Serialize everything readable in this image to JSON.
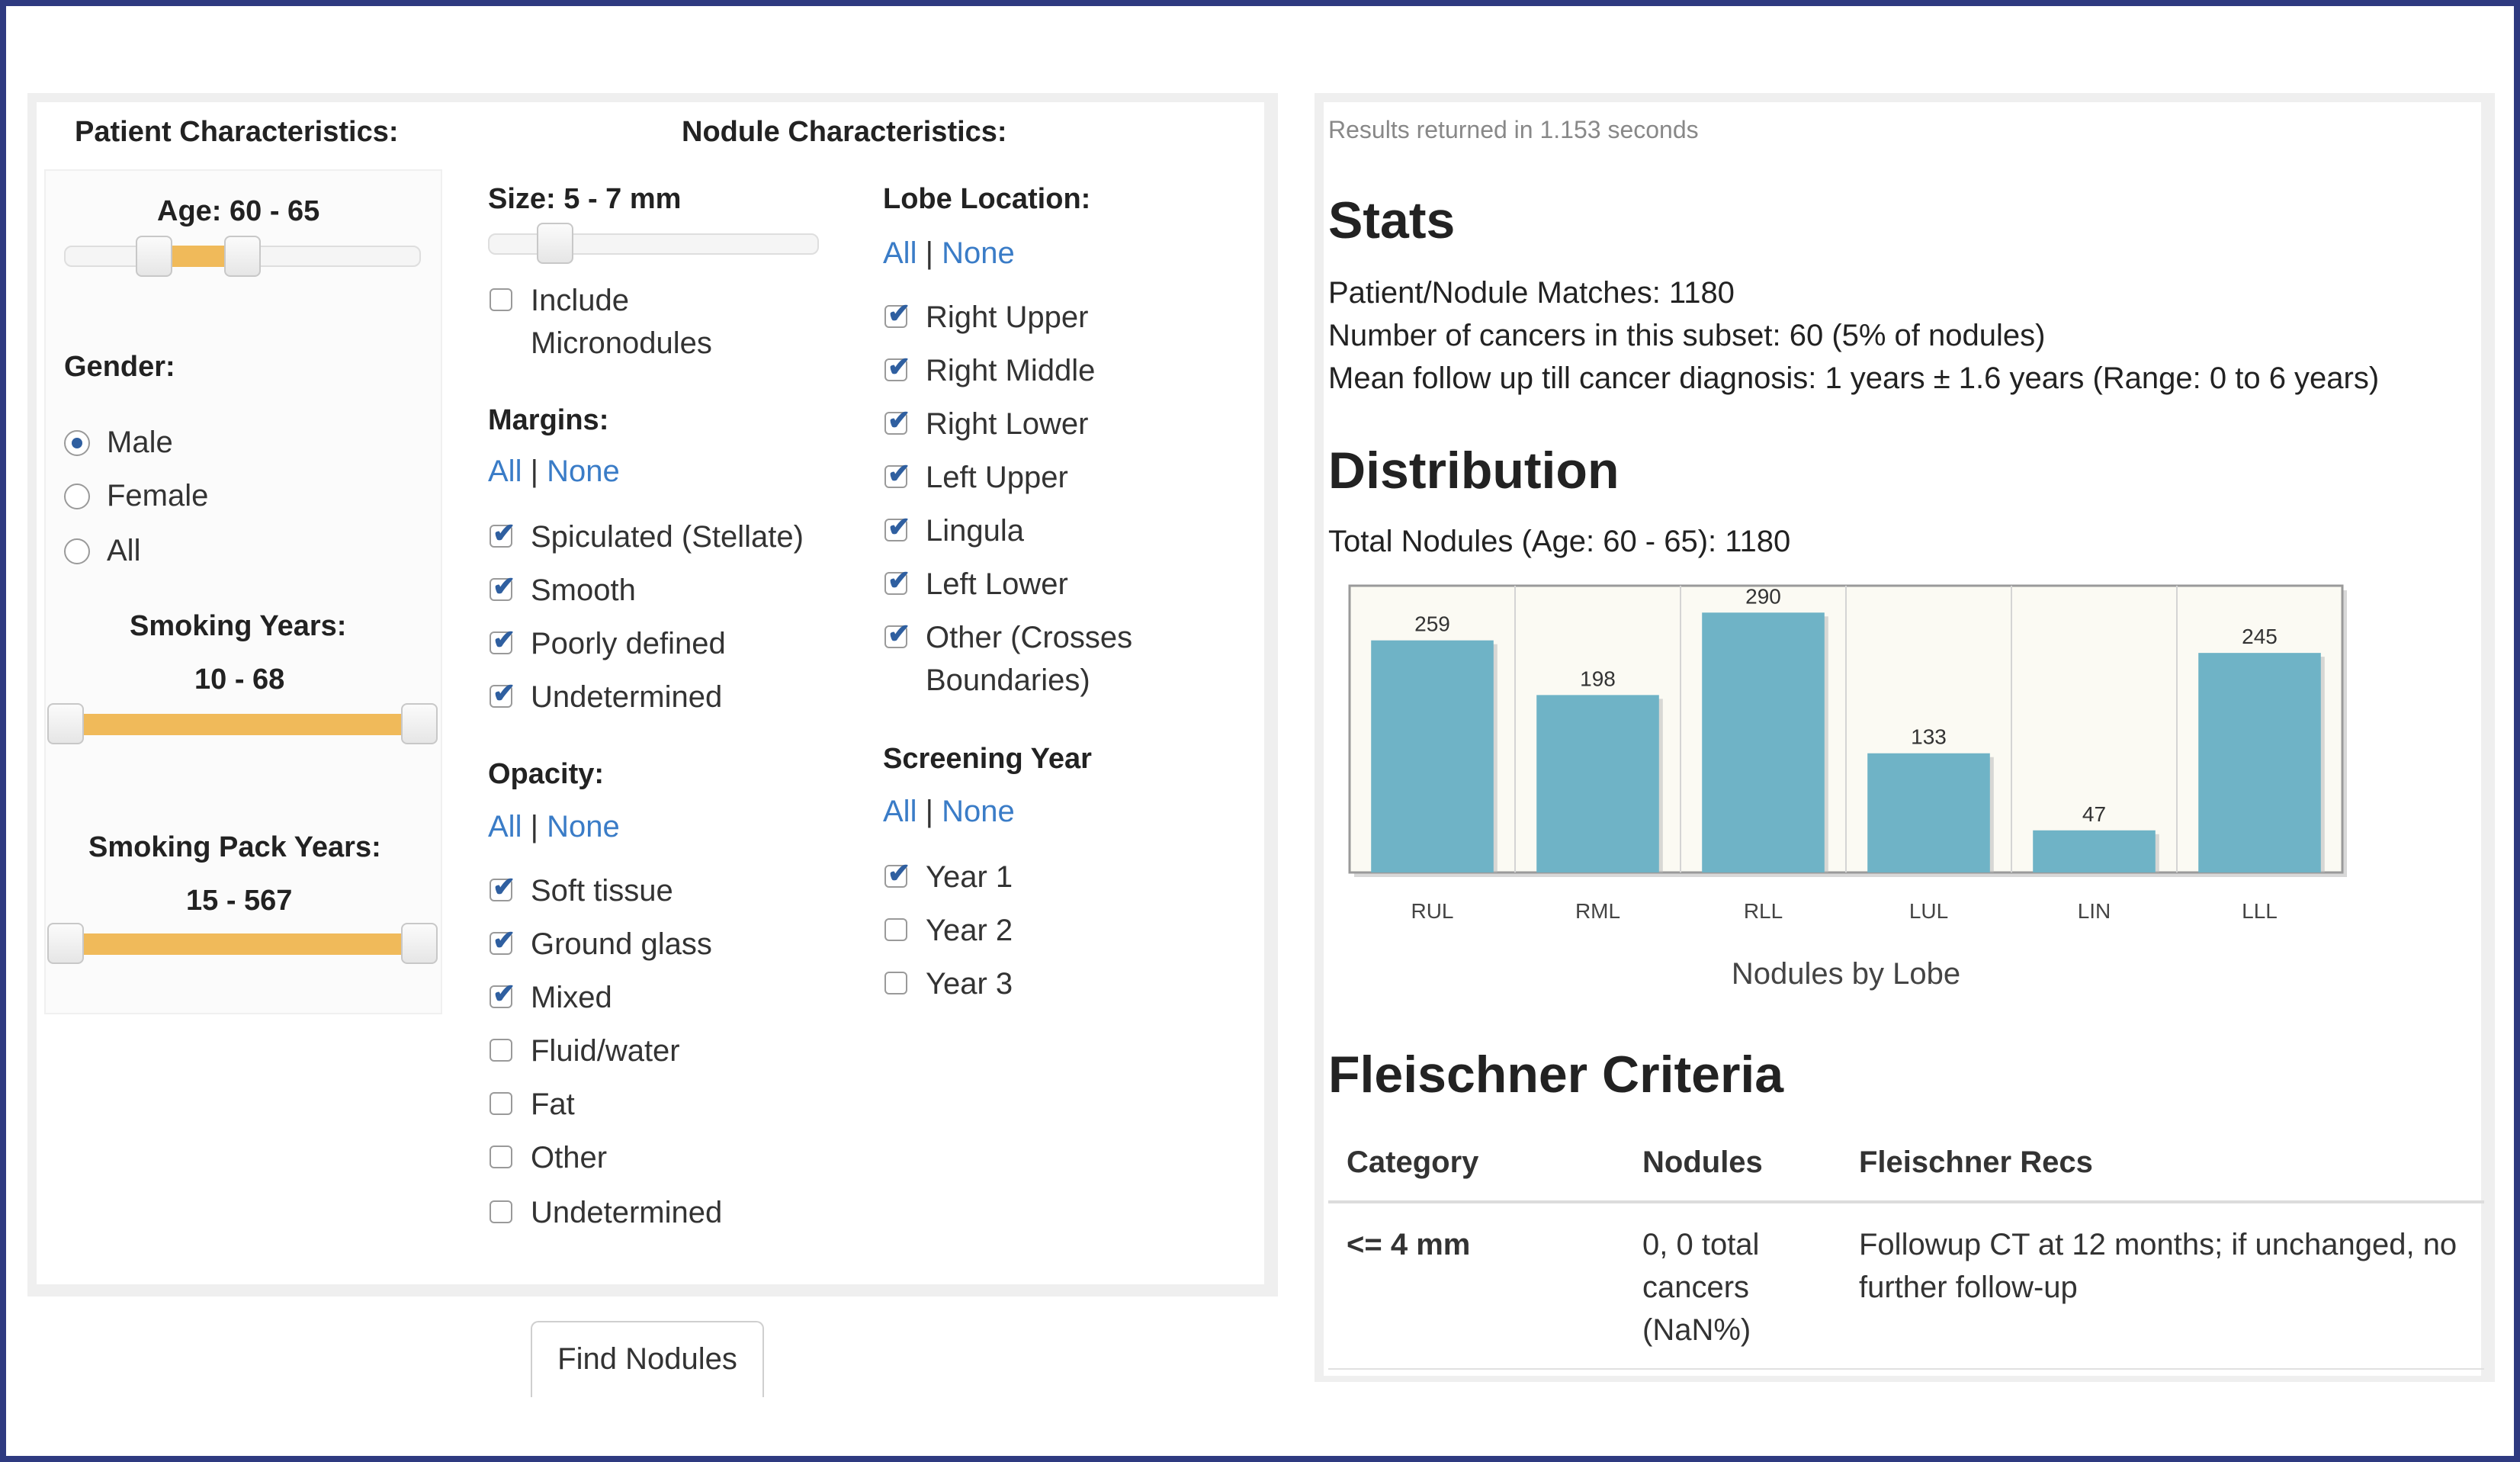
{
  "left": {
    "patient_title": "Patient Characteristics:",
    "nodule_title": "Nodule Characteristics:",
    "age_label": "Age: 60 - 65",
    "age_range": [
      60,
      65
    ],
    "gender_label": "Gender:",
    "gender_options": [
      "Male",
      "Female",
      "All"
    ],
    "gender_selected": "Male",
    "smoking_years_label": "Smoking Years:",
    "smoking_years_value": "10 - 68",
    "smoking_pack_label": "Smoking Pack Years:",
    "smoking_pack_value": "15 - 567",
    "size_label": "Size: 5 - 7 mm",
    "include_micro_line1": "Include",
    "include_micro_line2": "Micronodules",
    "margins_label": "Margins:",
    "all_label": "All",
    "none_label": "None",
    "sep": "|",
    "margins": [
      {
        "label": "Spiculated (Stellate)",
        "checked": true
      },
      {
        "label": "Smooth",
        "checked": true
      },
      {
        "label": "Poorly defined",
        "checked": true
      },
      {
        "label": "Undetermined",
        "checked": true
      }
    ],
    "opacity_label": "Opacity:",
    "opacity": [
      {
        "label": "Soft tissue",
        "checked": true
      },
      {
        "label": "Ground glass",
        "checked": true
      },
      {
        "label": "Mixed",
        "checked": true
      },
      {
        "label": "Fluid/water",
        "checked": false
      },
      {
        "label": "Fat",
        "checked": false
      },
      {
        "label": "Other",
        "checked": false
      },
      {
        "label": "Undetermined",
        "checked": false
      }
    ],
    "lobe_label": "Lobe Location:",
    "lobes": [
      {
        "label": "Right Upper",
        "checked": true
      },
      {
        "label": "Right Middle",
        "checked": true
      },
      {
        "label": "Right Lower",
        "checked": true
      },
      {
        "label": "Left Upper",
        "checked": true
      },
      {
        "label": "Lingula",
        "checked": true
      },
      {
        "label": "Left Lower",
        "checked": true
      },
      {
        "label": "Other (Crosses",
        "checked": true
      }
    ],
    "lobe_other_line2": "Boundaries)",
    "screening_label": "Screening Year",
    "screening": [
      {
        "label": "Year 1",
        "checked": true
      },
      {
        "label": "Year 2",
        "checked": false
      },
      {
        "label": "Year 3",
        "checked": false
      }
    ],
    "find_button": "Find Nodules"
  },
  "right": {
    "results_time": "Results returned in 1.153 seconds",
    "stats_title": "Stats",
    "stat_lines": [
      "Patient/Nodule Matches: 1180",
      "Number of cancers in this subset: 60 (5% of nodules)",
      "Mean follow up till cancer diagnosis: 1 years ± 1.6 years (Range: 0 to 6 years)"
    ],
    "distribution_title": "Distribution",
    "total_nodules": "Total Nodules (Age: 60 - 65): 1180",
    "fleischner_title": "Fleischner Criteria",
    "table_headers": [
      "Category",
      "Nodules",
      "Fleischner Recs"
    ],
    "table_row": {
      "category": "<= 4 mm",
      "nodules": [
        "0, 0 total",
        "cancers",
        "(NaN%)"
      ],
      "recs": [
        "Followup CT at 12 months; if unchanged, no",
        "further follow-up"
      ]
    }
  },
  "colors": {
    "accent": "#3a7cc7",
    "slider_fill": "#f0ba5a",
    "bar": "#6fb3c6",
    "frame": "#2e3a80"
  },
  "chart_data": {
    "type": "bar",
    "categories": [
      "RUL",
      "RML",
      "RLL",
      "LUL",
      "LIN",
      "LLL"
    ],
    "values": [
      259,
      198,
      290,
      133,
      47,
      245
    ],
    "xlabel": "Nodules by Lobe",
    "grid": true,
    "legend": "none"
  }
}
